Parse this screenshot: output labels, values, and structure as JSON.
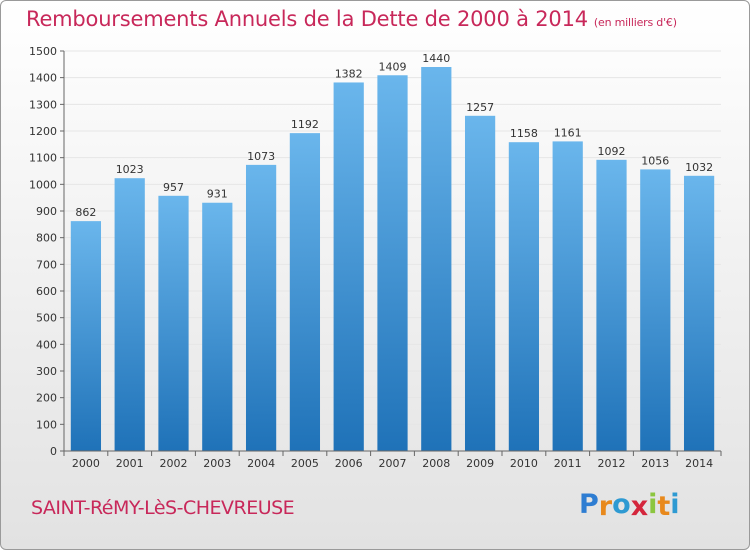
{
  "header": {
    "title": "Remboursements Annuels de la Dette de 2000 à 2014",
    "subtitle": "(en milliers d'€)"
  },
  "footer": {
    "commune": "SAINT-RéMY-LèS-CHEVREUSE",
    "logo_letters": [
      "P",
      "r",
      "o",
      "x",
      "i",
      "t",
      "i"
    ],
    "logo_colors": [
      "#2e7dd2",
      "#e8891c",
      "#2e9ad2",
      "#d4263c",
      "#8cc63f",
      "#e8891c",
      "#2e9ad2"
    ]
  },
  "colors": {
    "bar_top": "#6ab6ec",
    "bar_bottom": "#1f72b8",
    "grid": "#e6e6e6",
    "axis": "#666666",
    "text": "#333333",
    "accent": "#c8285a"
  },
  "chart_data": {
    "type": "bar",
    "title": "Remboursements Annuels de la Dette de 2000 à 2014",
    "subtitle": "(en milliers d'€)",
    "xlabel": "",
    "ylabel": "",
    "categories": [
      "2000",
      "2001",
      "2002",
      "2003",
      "2004",
      "2005",
      "2006",
      "2007",
      "2008",
      "2009",
      "2010",
      "2011",
      "2012",
      "2013",
      "2014"
    ],
    "values": [
      862,
      1023,
      957,
      931,
      1073,
      1192,
      1382,
      1409,
      1440,
      1257,
      1158,
      1161,
      1092,
      1056,
      1032
    ],
    "ylim": [
      0,
      1500
    ],
    "yticks": [
      0,
      100,
      200,
      300,
      400,
      500,
      600,
      700,
      800,
      900,
      1000,
      1100,
      1200,
      1300,
      1400,
      1500
    ],
    "grid": true,
    "legend": "none"
  }
}
